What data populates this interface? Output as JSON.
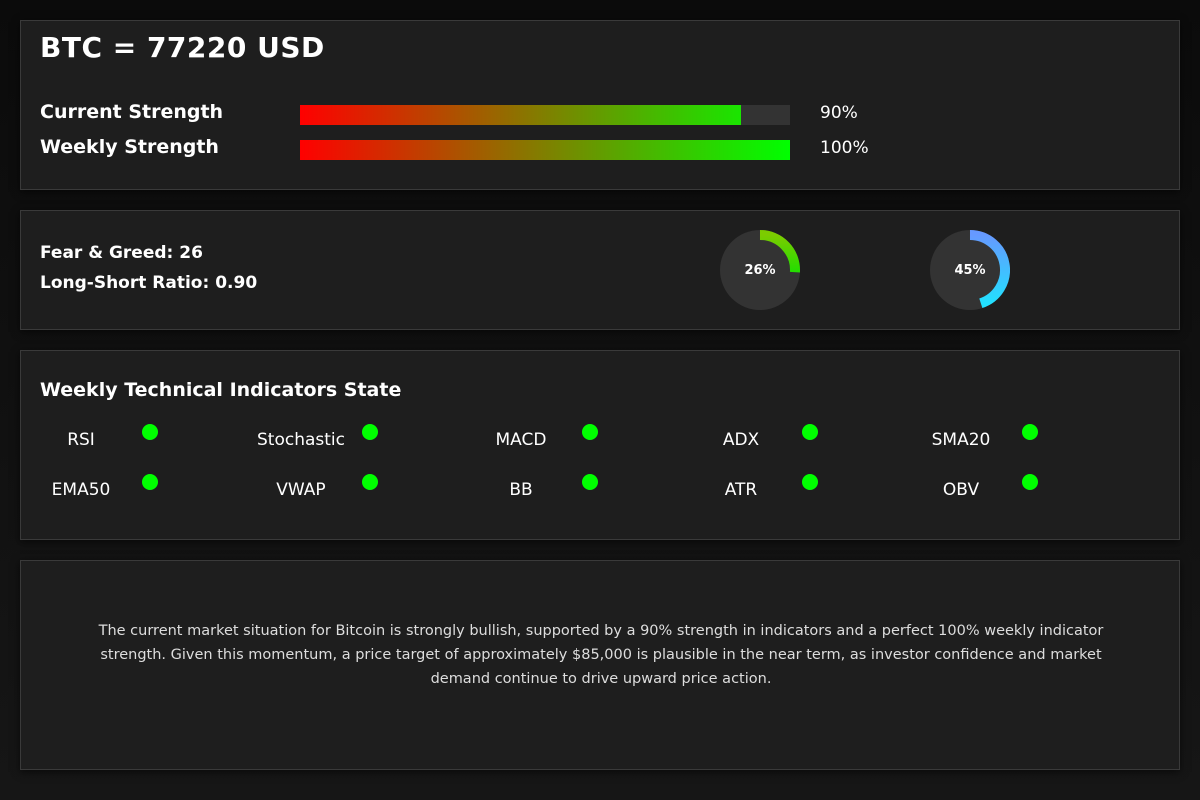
{
  "header": {
    "title": "BTC = 77220 USD"
  },
  "strength": {
    "current": {
      "label": "Current Strength",
      "value_text": "90%",
      "fraction": 0.9
    },
    "weekly": {
      "label": "Weekly Strength",
      "value_text": "100%",
      "fraction": 1.0
    },
    "gradient_colors": [
      "#ff0000",
      "#00ff00"
    ]
  },
  "sentiment": {
    "fear_greed_text": "Fear & Greed: 26",
    "long_short_text": "Long-Short Ratio: 0.90",
    "gauges": [
      {
        "label": "26%",
        "fraction": 0.26,
        "colors": [
          "#7ccc00",
          "#22dd00"
        ]
      },
      {
        "label": "45%",
        "fraction": 0.45,
        "colors": [
          "#6699ff",
          "#22e0ff"
        ]
      }
    ]
  },
  "indicators": {
    "title": "Weekly Technical Indicators State",
    "status_color": "#00ff00",
    "items": [
      {
        "label": "RSI"
      },
      {
        "label": "Stochastic"
      },
      {
        "label": "MACD"
      },
      {
        "label": "ADX"
      },
      {
        "label": "SMA20"
      },
      {
        "label": "EMA50"
      },
      {
        "label": "VWAP"
      },
      {
        "label": "BB"
      },
      {
        "label": "ATR"
      },
      {
        "label": "OBV"
      }
    ]
  },
  "summary": {
    "text": "The current market situation for Bitcoin is strongly bullish, supported by a 90% strength in indicators and a perfect 100% weekly indicator strength. Given this momentum, a price target of approximately $85,000 is plausible in the near term, as investor confidence and market demand continue to drive upward price action."
  }
}
